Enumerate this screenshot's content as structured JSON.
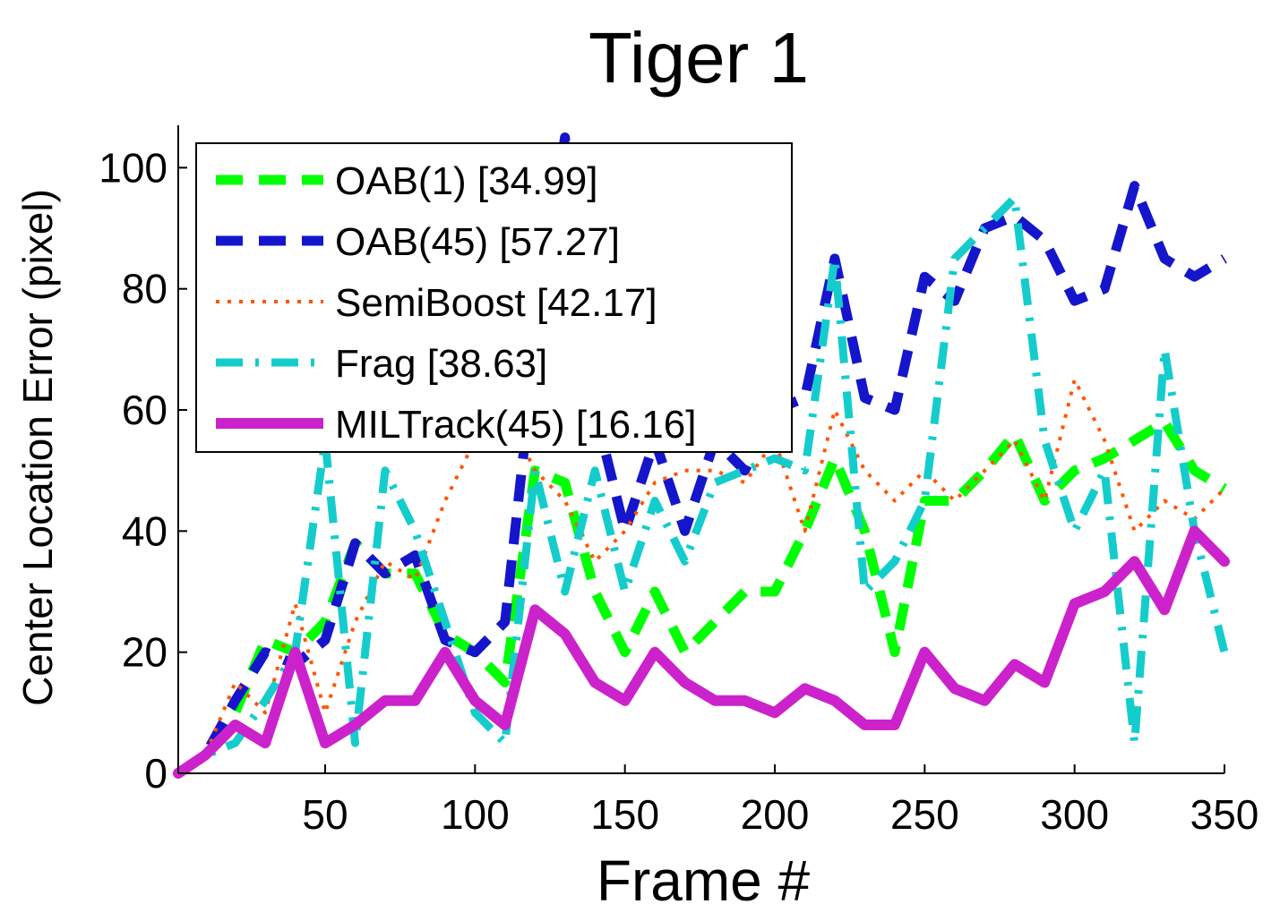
{
  "chart_data": {
    "type": "line",
    "title": "Tiger 1",
    "xlabel": "Frame #",
    "ylabel": "Center Location Error (pixel)",
    "xlim": [
      1,
      350
    ],
    "ylim": [
      0,
      107
    ],
    "xticks": [
      50,
      100,
      150,
      200,
      250,
      300,
      350
    ],
    "yticks": [
      0,
      20,
      40,
      60,
      80,
      100
    ],
    "grid": false,
    "legend_position": "top-left",
    "x": [
      1,
      10,
      20,
      30,
      40,
      50,
      60,
      70,
      80,
      90,
      100,
      110,
      120,
      130,
      140,
      150,
      160,
      170,
      180,
      190,
      200,
      210,
      220,
      230,
      240,
      250,
      260,
      270,
      280,
      290,
      300,
      310,
      320,
      330,
      340,
      350
    ],
    "series": [
      {
        "name": "OAB(1) [34.99]",
        "label": "OAB(1) [34.99]",
        "color": "#00ff00",
        "style": "dashed",
        "values": [
          0,
          3,
          10,
          22,
          20,
          25,
          38,
          33,
          33,
          23,
          20,
          15,
          50,
          48,
          30,
          20,
          30,
          20,
          25,
          30,
          30,
          40,
          52,
          40,
          20,
          45,
          45,
          50,
          56,
          45,
          50,
          52,
          55,
          58,
          50,
          47
        ]
      },
      {
        "name": "OAB(45) [57.27]",
        "label": "OAB(45) [57.27]",
        "color": "#1515cc",
        "style": "dashed",
        "values": [
          0,
          3,
          12,
          20,
          18,
          22,
          38,
          33,
          36,
          22,
          20,
          25,
          70,
          105,
          60,
          40,
          55,
          40,
          55,
          50,
          60,
          62,
          85,
          62,
          60,
          82,
          78,
          90,
          92,
          88,
          78,
          80,
          97,
          85,
          82,
          85
        ]
      },
      {
        "name": "SemiBoost [42.17]",
        "label": "SemiBoost [42.17]",
        "color": "#ff5500",
        "style": "dotted",
        "values": [
          0,
          3,
          15,
          10,
          28,
          10,
          25,
          35,
          32,
          45,
          55,
          60,
          50,
          45,
          35,
          40,
          48,
          50,
          50,
          48,
          55,
          40,
          60,
          50,
          45,
          50,
          45,
          50,
          55,
          45,
          65,
          55,
          40,
          45,
          42,
          47
        ]
      },
      {
        "name": "Frag [38.63]",
        "label": "Frag [38.63]",
        "color": "#15cccc",
        "style": "dashdot",
        "values": [
          0,
          3,
          5,
          12,
          20,
          55,
          5,
          50,
          40,
          25,
          10,
          5,
          50,
          30,
          50,
          30,
          45,
          35,
          48,
          50,
          52,
          50,
          85,
          30,
          35,
          45,
          85,
          90,
          95,
          55,
          40,
          50,
          5,
          70,
          40,
          20
        ]
      },
      {
        "name": "MILTrack(45) [16.16]",
        "label": "MILTrack(45) [16.16]",
        "color": "#cc22cc",
        "style": "solid",
        "values": [
          0,
          3,
          8,
          5,
          20,
          5,
          8,
          12,
          12,
          20,
          12,
          8,
          27,
          23,
          15,
          12,
          20,
          15,
          12,
          12,
          10,
          14,
          12,
          8,
          8,
          20,
          14,
          12,
          18,
          15,
          28,
          30,
          35,
          27,
          40,
          35
        ]
      }
    ]
  }
}
